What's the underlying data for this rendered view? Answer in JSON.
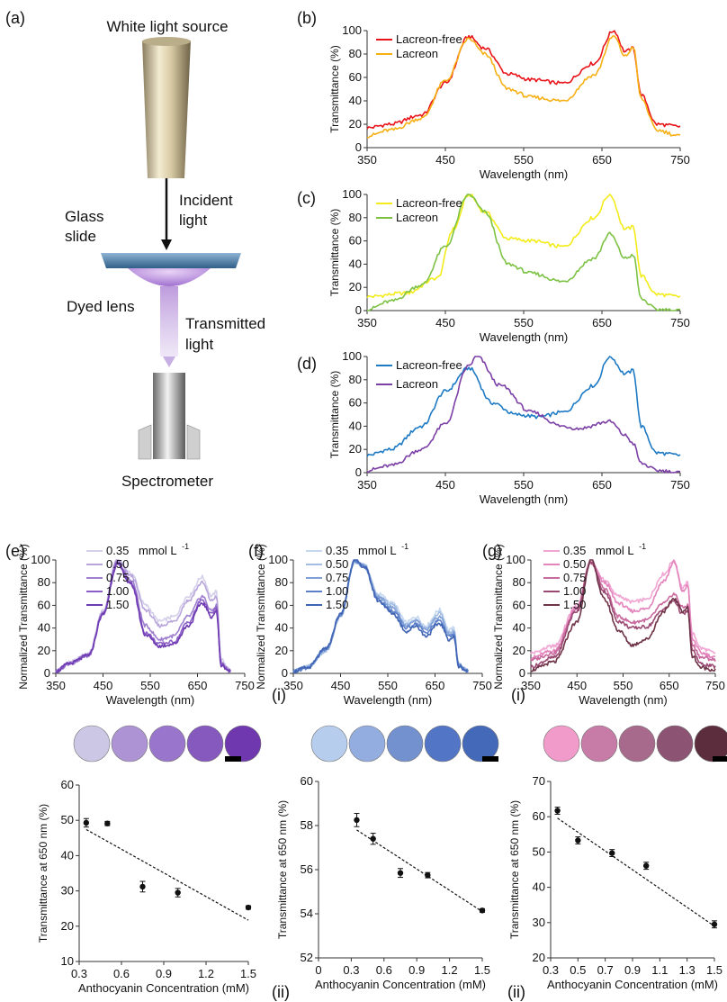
{
  "panel_labels": [
    "(a)",
    "(b)",
    "(c)",
    "(d)",
    "(e)",
    "(f)",
    "(g)",
    "(i)",
    "(i)",
    "(ii)",
    "(ii)"
  ],
  "setup": {
    "source": "White light source",
    "incident": [
      "Incident",
      "light"
    ],
    "glass": [
      "Glass",
      "slide"
    ],
    "lens": "Dyed lens",
    "transmitted": [
      "Transmitted",
      "light"
    ],
    "spectrometer": "Spectrometer"
  },
  "colors": {
    "b_free": "#e8141a",
    "b_lac": "#f6b014",
    "c_free": "#f3ec1a",
    "c_lac": "#7dc244",
    "d_free": "#1f7ac4",
    "d_lac": "#7b3fa5",
    "e": [
      "#d4d0ea",
      "#b8a5dc",
      "#9f7fd0",
      "#8a5ec6",
      "#6e3bb2"
    ],
    "f": [
      "#c5d8ef",
      "#a3bce3",
      "#7f9fd6",
      "#5b7fc8",
      "#3f63b4"
    ],
    "g": [
      "#f0a5d2",
      "#e384bd",
      "#c96a9f",
      "#9a4a72",
      "#6e3347"
    ],
    "circles_e": [
      "#ccc7e5",
      "#ae93d4",
      "#9a75cc",
      "#8659bf",
      "#6f38ae"
    ],
    "circles_f": [
      "#b7cdee",
      "#93ade0",
      "#7491cf",
      "#5375c5",
      "#4569b9"
    ],
    "circles_g": [
      "#f19bcb",
      "#c77ca7",
      "#a86a8c",
      "#8c5472",
      "#5c2d3d"
    ]
  },
  "chart_data": [
    {
      "id": "b",
      "type": "line",
      "xlabel": "Wavelength (nm)",
      "ylabel": "Transmittance (%)",
      "xlim": [
        350,
        750
      ],
      "ylim": [
        0,
        100
      ],
      "xticks": [
        350,
        450,
        550,
        650,
        750
      ],
      "yticks": [
        0,
        20,
        40,
        60,
        80,
        100
      ],
      "series": [
        {
          "name": "Lacreon-free",
          "x": [
            350,
            380,
            420,
            450,
            480,
            500,
            530,
            560,
            600,
            640,
            665,
            680,
            690,
            700,
            720,
            750
          ],
          "y": [
            17,
            20,
            28,
            55,
            95,
            85,
            63,
            58,
            55,
            72,
            100,
            82,
            85,
            45,
            20,
            18
          ]
        },
        {
          "name": "Lacreon",
          "x": [
            350,
            380,
            420,
            450,
            480,
            500,
            530,
            560,
            600,
            640,
            665,
            680,
            690,
            700,
            720,
            750
          ],
          "y": [
            10,
            15,
            25,
            57,
            93,
            80,
            50,
            43,
            40,
            62,
            95,
            78,
            86,
            42,
            15,
            10
          ]
        }
      ]
    },
    {
      "id": "c",
      "type": "line",
      "xlabel": "Wavelength (nm)",
      "ylabel": "Transmittance (%)",
      "xlim": [
        350,
        750
      ],
      "ylim": [
        0,
        100
      ],
      "xticks": [
        350,
        450,
        550,
        650,
        750
      ],
      "yticks": [
        0,
        20,
        40,
        60,
        80,
        100
      ],
      "series": [
        {
          "name": "Lacreon-free",
          "x": [
            350,
            400,
            440,
            460,
            480,
            500,
            530,
            560,
            600,
            640,
            660,
            680,
            690,
            700,
            720,
            750
          ],
          "y": [
            12,
            15,
            28,
            70,
            100,
            85,
            62,
            60,
            55,
            80,
            100,
            70,
            72,
            30,
            14,
            12
          ]
        },
        {
          "name": "Lacreon",
          "x": [
            350,
            380,
            420,
            450,
            480,
            500,
            530,
            560,
            600,
            640,
            660,
            680,
            690,
            700,
            720,
            750
          ],
          "y": [
            1,
            8,
            22,
            55,
            100,
            85,
            40,
            32,
            25,
            45,
            66,
            45,
            48,
            10,
            1,
            0
          ]
        }
      ]
    },
    {
      "id": "d",
      "type": "line",
      "xlabel": "Wavelength (nm)",
      "ylabel": "Transmittance (%)",
      "xlim": [
        350,
        750
      ],
      "ylim": [
        0,
        100
      ],
      "xticks": [
        350,
        450,
        550,
        650,
        750
      ],
      "yticks": [
        0,
        20,
        40,
        60,
        80,
        100
      ],
      "series": [
        {
          "name": "Lacreon-free",
          "x": [
            350,
            380,
            420,
            450,
            480,
            510,
            540,
            570,
            600,
            640,
            660,
            680,
            690,
            700,
            720,
            750
          ],
          "y": [
            15,
            20,
            40,
            70,
            90,
            60,
            50,
            48,
            52,
            75,
            100,
            85,
            88,
            40,
            17,
            15
          ]
        },
        {
          "name": "Lacreon",
          "x": [
            350,
            380,
            420,
            450,
            480,
            490,
            520,
            560,
            600,
            620,
            660,
            680,
            690,
            700,
            720,
            750
          ],
          "y": [
            2,
            6,
            20,
            42,
            92,
            100,
            75,
            52,
            40,
            38,
            44,
            32,
            25,
            8,
            2,
            0
          ]
        }
      ]
    },
    {
      "id": "e",
      "type": "line",
      "xlabel": "Wavelength (nm)",
      "ylabel": "Normalized Transmittance (%)",
      "xlim": [
        350,
        750
      ],
      "ylim": [
        0,
        100
      ],
      "xticks": [
        350,
        450,
        550,
        650,
        750
      ],
      "yticks": [
        0,
        20,
        40,
        60,
        80,
        100
      ],
      "legend_unit": "mmol L",
      "legend_unit_sup": "-1",
      "series": [
        {
          "name": "0.35",
          "x": [
            350,
            380,
            420,
            450,
            480,
            510,
            540,
            570,
            600,
            630,
            660,
            680,
            690,
            700,
            720
          ],
          "y": [
            2,
            10,
            18,
            55,
            100,
            88,
            60,
            46,
            50,
            68,
            85,
            68,
            72,
            12,
            2
          ]
        },
        {
          "name": "0.50",
          "x": [
            350,
            380,
            420,
            450,
            480,
            510,
            540,
            570,
            600,
            630,
            660,
            680,
            690,
            700,
            720
          ],
          "y": [
            2,
            9,
            17,
            54,
            100,
            86,
            56,
            42,
            46,
            64,
            80,
            64,
            68,
            10,
            2
          ]
        },
        {
          "name": "0.75",
          "x": [
            350,
            380,
            420,
            450,
            480,
            510,
            540,
            570,
            600,
            630,
            660,
            680,
            690,
            700,
            720
          ],
          "y": [
            2,
            9,
            16,
            53,
            98,
            82,
            42,
            30,
            33,
            50,
            68,
            55,
            60,
            8,
            2
          ]
        },
        {
          "name": "1.00",
          "x": [
            350,
            380,
            420,
            450,
            480,
            510,
            540,
            570,
            600,
            630,
            660,
            680,
            690,
            700,
            720
          ],
          "y": [
            2,
            9,
            16,
            53,
            97,
            80,
            36,
            26,
            28,
            45,
            65,
            52,
            58,
            8,
            2
          ]
        },
        {
          "name": "1.50",
          "x": [
            350,
            380,
            420,
            450,
            480,
            510,
            540,
            570,
            600,
            630,
            660,
            680,
            690,
            700,
            720
          ],
          "y": [
            2,
            9,
            16,
            52,
            96,
            78,
            34,
            24,
            26,
            42,
            62,
            50,
            55,
            7,
            2
          ]
        }
      ]
    },
    {
      "id": "f",
      "type": "line",
      "xlabel": "Wavelength (nm)",
      "ylabel": "Normalized Transmittance (%)",
      "xlim": [
        350,
        750
      ],
      "ylim": [
        0,
        100
      ],
      "xticks": [
        350,
        450,
        550,
        650,
        750
      ],
      "yticks": [
        0,
        20,
        40,
        60,
        80,
        100
      ],
      "legend_unit": "mmol L",
      "legend_unit_sup": "-1",
      "series": [
        {
          "name": "0.35",
          "x": [
            350,
            380,
            420,
            450,
            480,
            500,
            530,
            560,
            590,
            610,
            630,
            660,
            680,
            690,
            700,
            720
          ],
          "y": [
            2,
            6,
            20,
            50,
            98,
            96,
            70,
            62,
            45,
            50,
            42,
            56,
            38,
            40,
            8,
            2
          ]
        },
        {
          "name": "0.50",
          "x": [
            350,
            380,
            420,
            450,
            480,
            500,
            530,
            560,
            590,
            610,
            630,
            660,
            680,
            690,
            700,
            720
          ],
          "y": [
            2,
            6,
            20,
            50,
            98,
            95,
            68,
            60,
            43,
            48,
            40,
            53,
            36,
            38,
            8,
            2
          ]
        },
        {
          "name": "0.75",
          "x": [
            350,
            380,
            420,
            450,
            480,
            500,
            530,
            560,
            590,
            610,
            630,
            660,
            680,
            690,
            700,
            720
          ],
          "y": [
            2,
            6,
            21,
            51,
            99,
            95,
            67,
            58,
            42,
            46,
            38,
            50,
            34,
            36,
            7,
            2
          ]
        },
        {
          "name": "1.00",
          "x": [
            350,
            380,
            420,
            450,
            480,
            500,
            530,
            560,
            590,
            610,
            630,
            660,
            680,
            690,
            700,
            720
          ],
          "y": [
            2,
            5,
            22,
            52,
            99,
            94,
            65,
            55,
            40,
            44,
            36,
            47,
            32,
            34,
            7,
            2
          ]
        },
        {
          "name": "1.50",
          "x": [
            350,
            380,
            420,
            450,
            480,
            500,
            530,
            560,
            590,
            610,
            630,
            660,
            680,
            690,
            700,
            720
          ],
          "y": [
            2,
            5,
            22,
            52,
            100,
            94,
            64,
            53,
            37,
            42,
            33,
            44,
            30,
            32,
            6,
            2
          ]
        }
      ]
    },
    {
      "id": "g",
      "type": "line",
      "xlabel": "Wavelength (nm)",
      "ylabel": "Normalized Transmittance (%)",
      "xlim": [
        350,
        750
      ],
      "ylim": [
        0,
        100
      ],
      "xticks": [
        350,
        450,
        550,
        650,
        750
      ],
      "yticks": [
        0,
        20,
        40,
        60,
        80,
        100
      ],
      "legend_unit": "mmol L",
      "legend_unit_sup": "-1",
      "series": [
        {
          "name": "0.35",
          "x": [
            350,
            400,
            450,
            480,
            510,
            540,
            570,
            600,
            640,
            660,
            680,
            690,
            700,
            720,
            750
          ],
          "y": [
            18,
            24,
            60,
            98,
            82,
            68,
            63,
            65,
            88,
            100,
            75,
            80,
            35,
            22,
            18
          ]
        },
        {
          "name": "0.50",
          "x": [
            350,
            400,
            450,
            480,
            510,
            540,
            570,
            600,
            640,
            660,
            680,
            690,
            700,
            720,
            750
          ],
          "y": [
            14,
            20,
            58,
            98,
            80,
            62,
            55,
            57,
            82,
            98,
            72,
            78,
            30,
            18,
            14
          ]
        },
        {
          "name": "0.75",
          "x": [
            350,
            400,
            450,
            480,
            510,
            540,
            570,
            600,
            640,
            660,
            680,
            690,
            700,
            720,
            750
          ],
          "y": [
            12,
            18,
            57,
            97,
            75,
            50,
            45,
            47,
            62,
            70,
            58,
            60,
            25,
            14,
            12
          ]
        },
        {
          "name": "1.00",
          "x": [
            350,
            400,
            450,
            480,
            510,
            540,
            570,
            600,
            640,
            660,
            680,
            690,
            700,
            720,
            750
          ],
          "y": [
            6,
            14,
            55,
            98,
            72,
            46,
            40,
            41,
            57,
            64,
            52,
            55,
            20,
            8,
            6
          ]
        },
        {
          "name": "1.50",
          "x": [
            350,
            400,
            450,
            480,
            510,
            540,
            570,
            600,
            640,
            660,
            680,
            690,
            700,
            720,
            750
          ],
          "y": [
            3,
            10,
            45,
            100,
            65,
            38,
            25,
            30,
            55,
            66,
            55,
            58,
            15,
            5,
            3
          ]
        }
      ]
    },
    {
      "id": "e-ii",
      "type": "scatter",
      "xlabel": "Anthocyanin Concentration (mM)",
      "ylabel": "Transmittance at 650 nm (%)",
      "xlim": [
        0.3,
        1.5
      ],
      "ylim": [
        10,
        60
      ],
      "xticks": [
        0.3,
        0.6,
        0.9,
        1.2,
        1.5
      ],
      "yticks": [
        10,
        20,
        30,
        40,
        50,
        60
      ],
      "x": [
        0.35,
        0.5,
        0.75,
        1.0,
        1.5
      ],
      "y": [
        49.3,
        49.1,
        31.2,
        29.5,
        25.3
      ],
      "err": [
        1.2,
        0.6,
        1.5,
        1.2,
        0.5
      ],
      "fit": {
        "x": [
          0.35,
          1.5
        ],
        "y": [
          47.4,
          21.7
        ]
      }
    },
    {
      "id": "f-ii",
      "type": "scatter",
      "xlabel": "Anthocyanin Concentration (mM)",
      "ylabel": "Transmittance at 650 nm (%)",
      "xlim": [
        0,
        1.5
      ],
      "ylim": [
        52,
        60
      ],
      "xticks": [
        0,
        0.3,
        0.6,
        0.9,
        1.2,
        1.5
      ],
      "yticks": [
        52,
        54,
        56,
        58,
        60
      ],
      "x": [
        0.35,
        0.5,
        0.75,
        1.0,
        1.5
      ],
      "y": [
        58.25,
        57.4,
        55.85,
        55.75,
        54.15
      ],
      "err": [
        0.3,
        0.25,
        0.2,
        0.12,
        0.08
      ],
      "fit": {
        "x": [
          0.35,
          1.5
        ],
        "y": [
          57.8,
          54.1
        ]
      }
    },
    {
      "id": "g-ii",
      "type": "scatter",
      "xlabel": "Anthocyanin Concentration (mM)",
      "ylabel": "Transmittance at 650 nm (%)",
      "xlim": [
        0.3,
        1.5
      ],
      "ylim": [
        20,
        70
      ],
      "xticks": [
        0.3,
        0.5,
        0.7,
        0.9,
        1.1,
        1.3,
        1.5
      ],
      "yticks": [
        20,
        30,
        40,
        50,
        60,
        70
      ],
      "x": [
        0.35,
        0.5,
        0.75,
        1.0,
        1.5
      ],
      "y": [
        61.7,
        53.3,
        49.7,
        46.1,
        29.5
      ],
      "err": [
        1.0,
        1.0,
        1.0,
        1.0,
        1.0
      ],
      "fit": {
        "x": [
          0.35,
          1.5
        ],
        "y": [
          59.6,
          29.0
        ]
      }
    }
  ]
}
